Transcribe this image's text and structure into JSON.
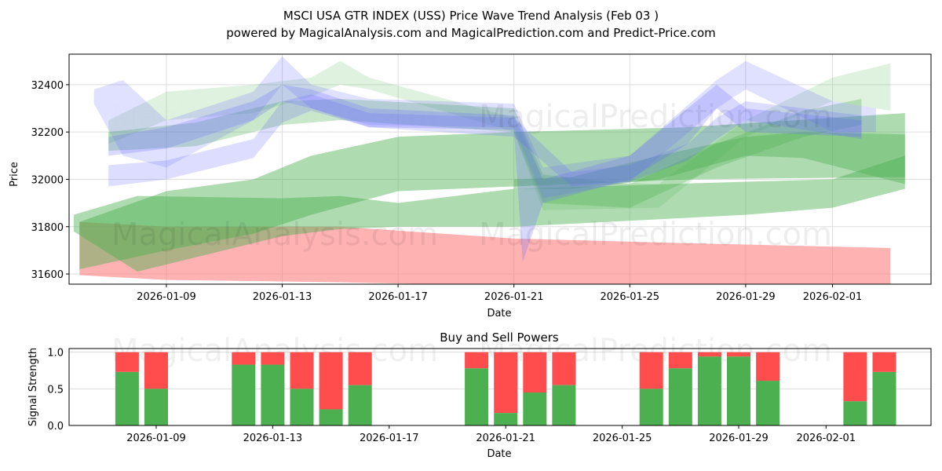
{
  "title": "MSCI USA GTR INDEX (USS) Price Wave Trend Analysis (Feb 03 )",
  "subtitle": "powered by MagicalAnalysis.com and MagicalPrediction.com and Predict-Price.com",
  "watermarks": [
    "MagicalAnalysis.com",
    "MagicalPrediction.com"
  ],
  "chart_data": [
    {
      "type": "area",
      "title": "",
      "xlabel": "Date",
      "ylabel": "Price",
      "x_unit": "days since 2026-01-09",
      "xlim": [
        -3.36,
        26.4
      ],
      "ylim": [
        31557,
        32529
      ],
      "yticks": [
        31600,
        31800,
        32000,
        32200,
        32400
      ],
      "xticks": [
        {
          "day": 0,
          "label": "2026-01-09"
        },
        {
          "day": 4,
          "label": "2026-01-13"
        },
        {
          "day": 8,
          "label": "2026-01-17"
        },
        {
          "day": 12,
          "label": "2026-01-21"
        },
        {
          "day": 16,
          "label": "2026-01-25"
        },
        {
          "day": 20,
          "label": "2026-01-29"
        },
        {
          "day": 23,
          "label": "2026-02-01"
        }
      ],
      "colors": {
        "red": "#ff6666",
        "green": "#4caf50",
        "blue": "#6666ff"
      },
      "bands": [
        {
          "color": "red",
          "opacity": 0.5,
          "x": [
            -3,
            0,
            6,
            12,
            18,
            25
          ],
          "upper": [
            31820,
            31800,
            31800,
            31750,
            31730,
            31710
          ],
          "lower": [
            31595,
            31575,
            31565,
            31550,
            31545,
            31545
          ]
        },
        {
          "color": "green",
          "opacity": 0.45,
          "x": [
            -3.2,
            -1,
            4,
            6,
            8,
            12,
            20,
            23,
            25.5
          ],
          "upper": [
            31850,
            31930,
            31920,
            31930,
            31900,
            31960,
            31990,
            32000,
            32100
          ],
          "lower": [
            31780,
            31610,
            31760,
            31790,
            31800,
            31800,
            31850,
            31880,
            31960
          ]
        },
        {
          "color": "green",
          "opacity": 0.45,
          "x": [
            -3,
            0,
            3,
            5,
            8,
            12,
            18,
            25.5
          ],
          "upper": [
            31820,
            31950,
            32000,
            32100,
            32180,
            32200,
            32220,
            32280
          ],
          "lower": [
            31620,
            31700,
            31770,
            31850,
            31950,
            31970,
            32000,
            32010
          ]
        },
        {
          "color": "green",
          "opacity": 0.4,
          "x": [
            12,
            14,
            17,
            20,
            22,
            25.5
          ],
          "upper": [
            32000,
            32010,
            32100,
            32180,
            32200,
            32190
          ],
          "lower": [
            31960,
            31960,
            32000,
            32100,
            32090,
            31980
          ]
        },
        {
          "color": "green",
          "opacity": 0.18,
          "x": [
            -2,
            0,
            3,
            5,
            6,
            7,
            12,
            13,
            17,
            20,
            23,
            25
          ],
          "upper": [
            32250,
            32370,
            32400,
            32430,
            32500,
            32430,
            32260,
            32000,
            31980,
            32250,
            32430,
            32490
          ],
          "lower": [
            32150,
            32250,
            32280,
            32350,
            32400,
            32380,
            32200,
            31870,
            31880,
            32180,
            32330,
            32290
          ]
        },
        {
          "color": "green",
          "opacity": 0.3,
          "x": [
            -2,
            1,
            4,
            6,
            12,
            13,
            16,
            19,
            22,
            24
          ],
          "upper": [
            32200,
            32240,
            32330,
            32340,
            32300,
            32020,
            31980,
            32150,
            32290,
            32340
          ],
          "lower": [
            32120,
            32140,
            32230,
            32250,
            32200,
            31900,
            31880,
            32050,
            32180,
            32230
          ]
        },
        {
          "color": "blue",
          "opacity": 0.2,
          "x": [
            -2.5,
            -1.5,
            0,
            3,
            4,
            5,
            7,
            12,
            13,
            16,
            19,
            20,
            23,
            24.5
          ],
          "upper": [
            32380,
            32420,
            32250,
            32370,
            32520,
            32400,
            32340,
            32320,
            32050,
            32100,
            32420,
            32500,
            32330,
            32300
          ],
          "lower": [
            32320,
            32100,
            32050,
            32250,
            32400,
            32300,
            32230,
            32220,
            31920,
            31990,
            32300,
            32380,
            32200,
            32200
          ]
        },
        {
          "color": "blue",
          "opacity": 0.25,
          "x": [
            -2,
            0,
            3,
            4,
            5,
            7,
            12,
            12.3,
            13,
            16,
            18,
            19,
            20,
            24
          ],
          "upper": [
            32180,
            32220,
            32330,
            32400,
            32380,
            32300,
            32270,
            32200,
            32000,
            32100,
            32300,
            32400,
            32300,
            32250
          ],
          "lower": [
            32100,
            32130,
            32250,
            32330,
            32300,
            32220,
            32210,
            31650,
            31900,
            32000,
            32150,
            32300,
            32200,
            32180
          ]
        },
        {
          "color": "blue",
          "opacity": 0.22,
          "x": [
            -2,
            0,
            3,
            4,
            5,
            7,
            12,
            14,
            16,
            18,
            19,
            20,
            24
          ],
          "upper": [
            32060,
            32080,
            32170,
            32330,
            32360,
            32280,
            32260,
            32030,
            32060,
            32150,
            32260,
            32330,
            32270
          ],
          "lower": [
            31970,
            32000,
            32090,
            32240,
            32290,
            32220,
            32180,
            31970,
            31990,
            32080,
            32170,
            32250,
            32170
          ]
        }
      ]
    },
    {
      "type": "bar",
      "title": "Buy and Sell Powers",
      "xlabel": "Date",
      "ylabel": "Signal Strength",
      "ylim": [
        0,
        1.05
      ],
      "yticks": [
        "0.0",
        "0.5",
        "1.0"
      ],
      "xticks": [
        {
          "day": 0,
          "label": "2026-01-09"
        },
        {
          "day": 4,
          "label": "2026-01-13"
        },
        {
          "day": 8,
          "label": "2026-01-17"
        },
        {
          "day": 12,
          "label": "2026-01-21"
        },
        {
          "day": 16,
          "label": "2026-01-25"
        },
        {
          "day": 20,
          "label": "2026-01-29"
        },
        {
          "day": 23,
          "label": "2026-02-01"
        }
      ],
      "colors": {
        "buy": "#4caf50",
        "sell": "#ff4d4d"
      },
      "days": [
        -1,
        0,
        3,
        4,
        5,
        6,
        7,
        11,
        12,
        13,
        14,
        17,
        18,
        19,
        20,
        21,
        24,
        25
      ],
      "buy": [
        0.73,
        0.5,
        0.83,
        0.83,
        0.5,
        0.22,
        0.55,
        0.78,
        0.17,
        0.45,
        0.55,
        0.5,
        0.78,
        0.94,
        0.94,
        0.61,
        0.33,
        0.73
      ]
    }
  ]
}
